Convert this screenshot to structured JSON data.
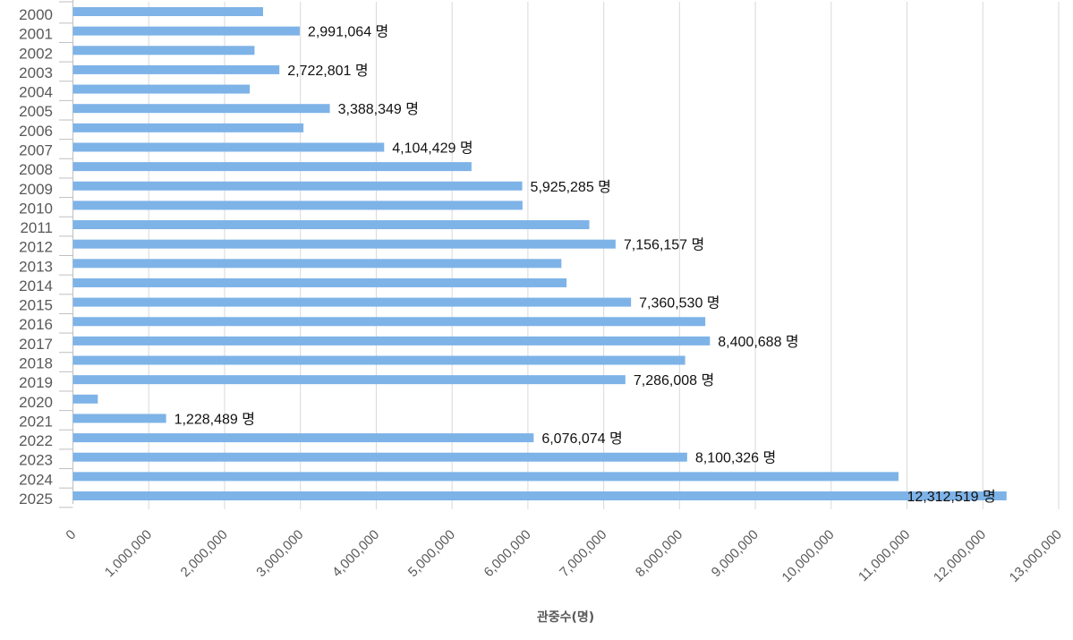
{
  "chart_data": {
    "type": "bar",
    "orientation": "horizontal",
    "title": "",
    "xlabel": "관중수(명)",
    "ylabel": "",
    "xlim": [
      0,
      13000000
    ],
    "x_ticks": [
      "0",
      "1,000,000",
      "2,000,000",
      "3,000,000",
      "4,000,000",
      "5,000,000",
      "6,000,000",
      "7,000,000",
      "8,000,000",
      "9,000,000",
      "10,000,000",
      "11,000,000",
      "12,000,000",
      "13,000,000"
    ],
    "grid": true,
    "bar_color": "#7EB3E8",
    "categories": [
      "2000",
      "2001",
      "2002",
      "2003",
      "2004",
      "2005",
      "2006",
      "2007",
      "2008",
      "2009",
      "2010",
      "2011",
      "2012",
      "2013",
      "2014",
      "2015",
      "2016",
      "2017",
      "2018",
      "2019",
      "2020",
      "2021",
      "2022",
      "2023",
      "2024",
      "2025"
    ],
    "values": [
      2507549,
      2991064,
      2395000,
      2722801,
      2331978,
      3388349,
      3040254,
      4104429,
      5256332,
      5925285,
      5928626,
      6810028,
      7156157,
      6441945,
      6509915,
      7360530,
      8339577,
      8400688,
      8073742,
      7286008,
      328317,
      1228489,
      6076074,
      8100326,
      10887705,
      12312519
    ],
    "data_labels": [
      null,
      "2,991,064 명",
      null,
      "2,722,801 명",
      null,
      "3,388,349 명",
      null,
      "4,104,429 명",
      null,
      "5,925,285 명",
      null,
      null,
      "7,156,157 명",
      null,
      null,
      "7,360,530 명",
      null,
      "8,400,688 명",
      null,
      "7,286,008 명",
      null,
      "1,228,489 명",
      "6,076,074 명",
      "8,100,326 명",
      null,
      "12,312,519 명"
    ]
  }
}
